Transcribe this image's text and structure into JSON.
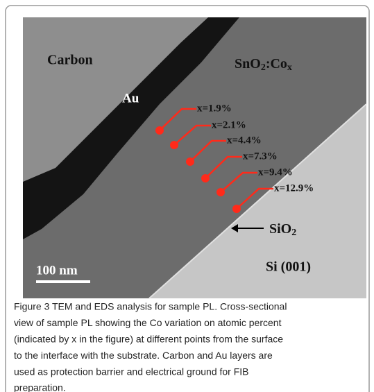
{
  "figure": {
    "labels": {
      "carbon": "Carbon",
      "au": "Au",
      "film": {
        "base": "SnO",
        "sub1": "2",
        "mid": ":Co",
        "sub2": "x"
      },
      "oxide": {
        "base": "SiO",
        "sub": "2"
      },
      "substrate": "Si (001)",
      "scale_bar": "100 nm"
    },
    "points": [
      "x=1.9%",
      "x=2.1%",
      "x=4.4%",
      "x=7.3%",
      "x=9.4%",
      "x=12.9%"
    ],
    "caption": [
      "Figure 3 TEM and EDS analysis for sample PL. Cross-sectional",
      "view of sample PL showing the Co variation on atomic percent",
      "(indicated by x in the figure) at different points from the surface",
      "to the interface with the substrate. Carbon and Au layers are",
      "used as protection barrier and electrical ground for FIB",
      "preparation."
    ]
  }
}
